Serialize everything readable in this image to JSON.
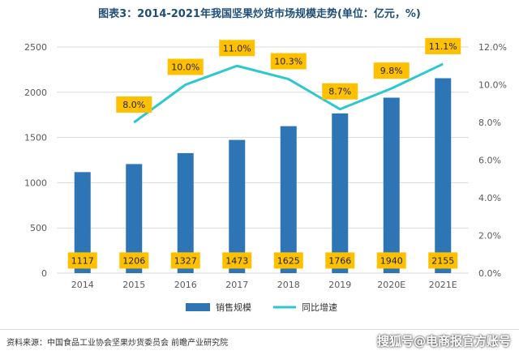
{
  "page": {
    "title": "图表3：2014-2021年我国坚果炒货市场规模走势(单位：亿元，%)",
    "source": "资料来源：中国食品工业协会坚果炒货委员会 前瞻产业研究院",
    "watermark": "搜狐号@电商报官方账号"
  },
  "chart_data": {
    "type": "bar",
    "categories": [
      "2014",
      "2015",
      "2016",
      "2017",
      "2018",
      "2019",
      "2020E",
      "2021E"
    ],
    "series": [
      {
        "name": "销售规模",
        "type": "bar",
        "axis": "left",
        "color": "#2e75b6",
        "values": [
          1117,
          1206,
          1327,
          1473,
          1625,
          1766,
          1940,
          2155
        ]
      },
      {
        "name": "同比增速",
        "type": "line",
        "axis": "right",
        "color": "#2dc8cf",
        "values": [
          null,
          8.0,
          10.0,
          11.0,
          10.3,
          8.7,
          9.8,
          11.1
        ]
      }
    ],
    "y_left": {
      "min": 0,
      "max": 2500,
      "ticks": [
        0,
        500,
        1000,
        1500,
        2000,
        2500
      ]
    },
    "y_right": {
      "min": 0,
      "max": 12,
      "ticks": [
        "0.0%",
        "2.0%",
        "4.0%",
        "6.0%",
        "8.0%",
        "10.0%",
        "12.0%"
      ]
    },
    "bar_labels": [
      "1117",
      "1206",
      "1327",
      "1473",
      "1625",
      "1766",
      "1940",
      "2155"
    ],
    "line_labels": [
      "",
      "8.0%",
      "10.0%",
      "11.0%",
      "10.3%",
      "8.7%",
      "9.8%",
      "11.1%"
    ],
    "label_box_color": "#ffc000",
    "legend": {
      "position": "bottom"
    }
  }
}
